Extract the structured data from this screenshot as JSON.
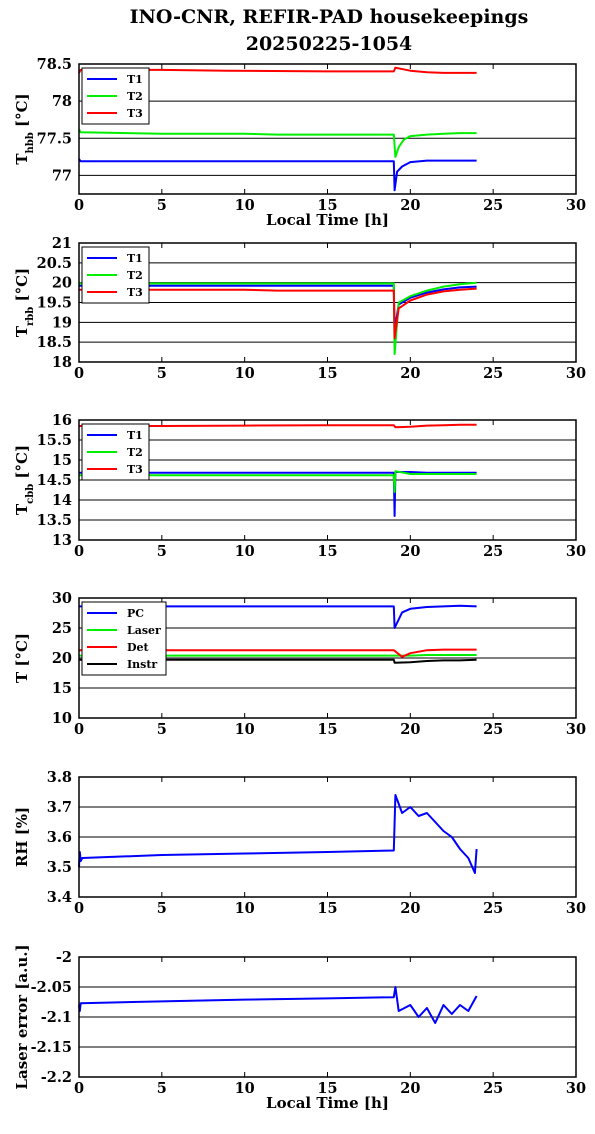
{
  "title_line1": "INO-CNR, REFIR-PAD housekeepings",
  "title_line2": "20250225-1054",
  "chart_data": [
    {
      "type": "line",
      "ylabel": "T_hbb [°C]",
      "ylabel_main": "T",
      "ylabel_sub": "hbb",
      "ylabel_tail": " [°C]",
      "xlabel": "Local Time [h]",
      "xlim": [
        0,
        30
      ],
      "ylim": [
        76.75,
        78.5
      ],
      "xticks": [
        "0",
        "5",
        "10",
        "15",
        "20",
        "25",
        "30"
      ],
      "yticks": [
        77,
        77.5,
        78,
        78.5
      ],
      "ytick_labels": [
        "77",
        "77.5",
        "78",
        "78.5"
      ],
      "grid": true,
      "legend": "top-left",
      "series": [
        {
          "name": "T1",
          "color": "#0000ff",
          "x": [
            0,
            0.1,
            5,
            10,
            15,
            19,
            19.05,
            19.2,
            19.5,
            20,
            21,
            22,
            23,
            24
          ],
          "y": [
            77.22,
            77.19,
            77.19,
            77.19,
            77.19,
            77.19,
            76.8,
            77.05,
            77.12,
            77.18,
            77.2,
            77.2,
            77.2,
            77.2
          ]
        },
        {
          "name": "T2",
          "color": "#00ee00",
          "x": [
            0,
            0.1,
            5,
            10,
            12,
            15,
            19,
            19.1,
            19.3,
            19.6,
            20,
            21,
            22,
            23,
            24
          ],
          "y": [
            77.62,
            77.58,
            77.56,
            77.56,
            77.55,
            77.55,
            77.55,
            77.25,
            77.38,
            77.48,
            77.53,
            77.55,
            77.56,
            77.57,
            77.57
          ]
        },
        {
          "name": "T3",
          "color": "#ff0000",
          "x": [
            0,
            0.1,
            5,
            9,
            15,
            19,
            19.1,
            20,
            21,
            22,
            23,
            24
          ],
          "y": [
            78.38,
            78.42,
            78.42,
            78.41,
            78.4,
            78.4,
            78.45,
            78.41,
            78.39,
            78.38,
            78.38,
            78.38
          ]
        }
      ]
    },
    {
      "type": "line",
      "ylabel": "T_rbb [°C]",
      "ylabel_main": "T",
      "ylabel_sub": "rbb",
      "ylabel_tail": " [°C]",
      "xlabel": "",
      "xlim": [
        0,
        30
      ],
      "ylim": [
        18,
        21
      ],
      "xticks": [
        "0",
        "5",
        "10",
        "15",
        "20",
        "25",
        "30"
      ],
      "yticks": [
        18,
        18.5,
        19,
        19.5,
        20,
        20.5,
        21
      ],
      "ytick_labels": [
        "18",
        "18.5",
        "19",
        "19.5",
        "20",
        "20.5",
        "21"
      ],
      "grid": true,
      "legend": "top-left",
      "series": [
        {
          "name": "T1",
          "color": "#0000ff",
          "x": [
            0,
            5,
            10,
            15,
            19,
            19.05,
            19.3,
            20,
            21,
            22,
            23,
            24
          ],
          "y": [
            19.92,
            19.92,
            19.92,
            19.92,
            19.92,
            18.8,
            19.45,
            19.62,
            19.75,
            19.83,
            19.88,
            19.9
          ]
        },
        {
          "name": "T2",
          "color": "#00ee00",
          "x": [
            0,
            5,
            10,
            15,
            19,
            19.05,
            19.3,
            20,
            21,
            22,
            23,
            24
          ],
          "y": [
            19.98,
            19.98,
            19.98,
            19.98,
            19.98,
            18.2,
            19.5,
            19.66,
            19.8,
            19.9,
            19.96,
            20.0
          ]
        },
        {
          "name": "T3",
          "color": "#ff0000",
          "x": [
            0,
            5,
            10,
            12,
            15,
            19,
            19.05,
            19.3,
            20,
            21,
            22,
            23,
            24
          ],
          "y": [
            19.82,
            19.82,
            19.82,
            19.8,
            19.8,
            19.8,
            18.6,
            19.35,
            19.55,
            19.7,
            19.78,
            19.82,
            19.85
          ]
        }
      ]
    },
    {
      "type": "line",
      "ylabel": "T_cbb [°C]",
      "ylabel_main": "T",
      "ylabel_sub": "cbb",
      "ylabel_tail": " [°C]",
      "xlabel": "",
      "xlim": [
        0,
        30
      ],
      "ylim": [
        13,
        16
      ],
      "xticks": [
        "0",
        "5",
        "10",
        "15",
        "20",
        "25",
        "30"
      ],
      "yticks": [
        13,
        13.5,
        14,
        14.5,
        15,
        15.5,
        16
      ],
      "ytick_labels": [
        "13",
        "13.5",
        "14",
        "14.5",
        "15",
        "15.5",
        "16"
      ],
      "grid": true,
      "legend": "top-left",
      "series": [
        {
          "name": "T1",
          "color": "#0000ff",
          "x": [
            0,
            5,
            10,
            15,
            19,
            19.05,
            19.1,
            20,
            21,
            22,
            23,
            24
          ],
          "y": [
            14.68,
            14.68,
            14.68,
            14.68,
            14.68,
            13.6,
            14.7,
            14.7,
            14.68,
            14.68,
            14.68,
            14.68
          ]
        },
        {
          "name": "T2",
          "color": "#00ee00",
          "x": [
            0,
            5,
            10,
            15,
            19,
            19.05,
            19.1,
            20,
            21,
            22,
            23,
            24
          ],
          "y": [
            14.62,
            14.62,
            14.62,
            14.62,
            14.62,
            14.2,
            14.72,
            14.65,
            14.65,
            14.65,
            14.65,
            14.65
          ]
        },
        {
          "name": "T3",
          "color": "#ff0000",
          "x": [
            0,
            5,
            10,
            15,
            19,
            19.1,
            20,
            21,
            22,
            23,
            24
          ],
          "y": [
            15.85,
            15.85,
            15.86,
            15.87,
            15.87,
            15.82,
            15.83,
            15.86,
            15.87,
            15.88,
            15.88
          ]
        }
      ]
    },
    {
      "type": "line",
      "ylabel": "T [°C]",
      "ylabel_main": "T [°C]",
      "ylabel_sub": "",
      "ylabel_tail": "",
      "xlabel": "",
      "xlim": [
        0,
        30
      ],
      "ylim": [
        10,
        30
      ],
      "xticks": [
        "0",
        "5",
        "10",
        "15",
        "20",
        "25",
        "30"
      ],
      "yticks": [
        10,
        15,
        20,
        25,
        30
      ],
      "ytick_labels": [
        "10",
        "15",
        "20",
        "25",
        "30"
      ],
      "grid": true,
      "legend": "top-left",
      "series": [
        {
          "name": "PC",
          "color": "#0000ff",
          "x": [
            0,
            5,
            10,
            15,
            19,
            19.05,
            19.5,
            20,
            21,
            22,
            23,
            24
          ],
          "y": [
            28.6,
            28.6,
            28.6,
            28.6,
            28.6,
            25.0,
            27.6,
            28.2,
            28.5,
            28.6,
            28.7,
            28.6
          ]
        },
        {
          "name": "Laser",
          "color": "#00ee00",
          "x": [
            0,
            5,
            10,
            15,
            19,
            20,
            21,
            22,
            23,
            24
          ],
          "y": [
            20.4,
            20.4,
            20.4,
            20.4,
            20.4,
            20.4,
            20.5,
            20.5,
            20.5,
            20.5
          ]
        },
        {
          "name": "Det",
          "color": "#ff0000",
          "x": [
            0,
            5,
            10,
            15,
            19,
            19.5,
            20,
            21,
            22,
            23,
            24
          ],
          "y": [
            21.3,
            21.3,
            21.3,
            21.3,
            21.3,
            20.2,
            20.8,
            21.3,
            21.4,
            21.4,
            21.4
          ]
        },
        {
          "name": "Instr",
          "color": "#000000",
          "x": [
            0,
            5,
            10,
            15,
            19,
            19.05,
            20,
            21,
            22,
            23,
            24
          ],
          "y": [
            19.7,
            19.7,
            19.7,
            19.7,
            19.7,
            19.2,
            19.3,
            19.5,
            19.6,
            19.6,
            19.7
          ]
        }
      ]
    },
    {
      "type": "line",
      "ylabel": "RH [%]",
      "ylabel_main": "RH [%]",
      "ylabel_sub": "",
      "ylabel_tail": "",
      "xlabel": "",
      "xlim": [
        0,
        30
      ],
      "ylim": [
        3.4,
        3.8
      ],
      "xticks": [
        "0",
        "5",
        "10",
        "15",
        "20",
        "25",
        "30"
      ],
      "yticks": [
        3.4,
        3.5,
        3.6,
        3.7,
        3.8
      ],
      "ytick_labels": [
        "3.4",
        "3.5",
        "3.6",
        "3.7",
        "3.8"
      ],
      "grid": true,
      "legend": "none",
      "series": [
        {
          "name": "",
          "color": "#0000ff",
          "x": [
            0,
            0.05,
            0.1,
            0.2,
            5,
            10,
            15,
            19,
            19.1,
            19.5,
            20,
            20.5,
            21,
            21.5,
            22,
            22.5,
            23,
            23.5,
            23.9,
            24
          ],
          "y": [
            3.5,
            3.55,
            3.52,
            3.53,
            3.54,
            3.545,
            3.55,
            3.555,
            3.74,
            3.68,
            3.7,
            3.67,
            3.68,
            3.65,
            3.62,
            3.6,
            3.56,
            3.53,
            3.48,
            3.56
          ]
        }
      ]
    },
    {
      "type": "line",
      "ylabel": "Laser error [a.u.]",
      "ylabel_main": "Laser error [a.u.]",
      "ylabel_sub": "",
      "ylabel_tail": "",
      "xlabel": "Local Time [h]",
      "xlim": [
        0,
        30
      ],
      "ylim": [
        -2.2,
        -2
      ],
      "xticks": [
        "0",
        "5",
        "10",
        "15",
        "20",
        "25",
        "30"
      ],
      "yticks": [
        -2.2,
        -2.15,
        -2.1,
        -2.05,
        -2
      ],
      "ytick_labels": [
        "-2.2",
        "-2.15",
        "-2.1",
        "-2.05",
        "-2"
      ],
      "grid": true,
      "legend": "none",
      "series": [
        {
          "name": "",
          "color": "#0000ff",
          "x": [
            0,
            0.05,
            0.1,
            5,
            10,
            15,
            19,
            19.1,
            19.3,
            20,
            20.5,
            21,
            21.5,
            22,
            22.5,
            23,
            23.5,
            24
          ],
          "y": [
            -2.08,
            -2.09,
            -2.077,
            -2.074,
            -2.071,
            -2.069,
            -2.067,
            -2.05,
            -2.09,
            -2.08,
            -2.1,
            -2.085,
            -2.11,
            -2.08,
            -2.095,
            -2.08,
            -2.09,
            -2.065
          ]
        }
      ]
    }
  ]
}
